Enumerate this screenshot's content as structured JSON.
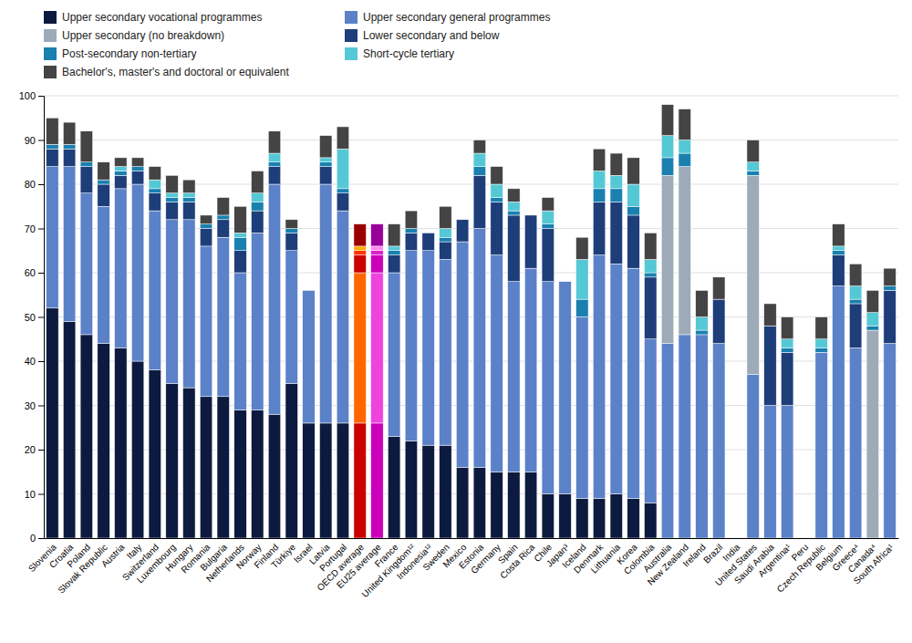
{
  "chart_data": {
    "type": "bar",
    "stacked": true,
    "grid": true,
    "legend": "top-left",
    "categories": [
      "Slovenia",
      "Croatia",
      "Poland",
      "Slovak Republic",
      "Austria",
      "Italy",
      "Switzerland",
      "Luxembourg",
      "Hungary",
      "Romania",
      "Bulgaria",
      "Netherlands",
      "Norway",
      "Finland",
      "Türkiye",
      "Israel",
      "Latvia",
      "Portugal",
      "OECD average",
      "EU25 average",
      "France",
      "United Kingdom¹²",
      "Indonesia¹²",
      "Sweden",
      "Mexico",
      "Estonia",
      "Germany",
      "Spain",
      "Costa Rica",
      "Chile",
      "Japan³",
      "Iceland",
      "Denmark",
      "Lithuania",
      "Korea",
      "Colombia",
      "Australia",
      "New Zealand",
      "Ireland",
      "Brazil",
      "India",
      "United States",
      "Saudi Arabia",
      "Argentina¹",
      "Peru",
      "Czech Republic",
      "Belgium",
      "Greece⁴",
      "Canada⁴",
      "South Africa¹"
    ],
    "ylim": [
      0,
      100
    ],
    "yticks": [
      0,
      10,
      20,
      30,
      40,
      50,
      60,
      70,
      80,
      90,
      100
    ],
    "series": [
      {
        "name": "Upper secondary vocational programmes",
        "color": "#0d1a40",
        "values": [
          52,
          49,
          46,
          44,
          43,
          40,
          38,
          35,
          34,
          32,
          32,
          29,
          29,
          28,
          35,
          26,
          26,
          26,
          26,
          26,
          23,
          22,
          21,
          21,
          16,
          16,
          15,
          15,
          15,
          10,
          10,
          9,
          9,
          10,
          9,
          8,
          0,
          0,
          0,
          0,
          0,
          0,
          0,
          0,
          0,
          0,
          0,
          0,
          0,
          0
        ],
        "colors": [
          "#0d1a40",
          "#0d1a40",
          "#0d1a40",
          "#0d1a40",
          "#0d1a40",
          "#0d1a40",
          "#0d1a40",
          "#0d1a40",
          "#0d1a40",
          "#0d1a40",
          "#0d1a40",
          "#0d1a40",
          "#0d1a40",
          "#0d1a40",
          "#0d1a40",
          "#0d1a40",
          "#0d1a40",
          "#0d1a40",
          "#cc0000",
          "#cc00bb",
          "#0d1a40",
          "#0d1a40",
          "#0d1a40",
          "#0d1a40",
          "#0d1a40",
          "#0d1a40",
          "#0d1a40",
          "#0d1a40",
          "#0d1a40",
          "#0d1a40",
          "#0d1a40",
          "#0d1a40",
          "#0d1a40",
          "#0d1a40",
          "#0d1a40",
          "#0d1a40",
          "#0d1a40",
          "#0d1a40",
          "#0d1a40",
          "#0d1a40",
          "#0d1a40",
          "#0d1a40",
          "#0d1a40",
          "#0d1a40",
          "#0d1a40",
          "#0d1a40",
          "#0d1a40",
          "#0d1a40",
          "#0d1a40",
          "#0d1a40"
        ]
      },
      {
        "name": "Upper secondary general programmes",
        "color": "#5b82c8",
        "values": [
          32,
          35,
          32,
          31,
          36,
          40,
          36,
          37,
          38,
          34,
          36,
          31,
          40,
          52,
          30,
          30,
          54,
          48,
          34,
          34,
          37,
          43,
          44,
          42,
          51,
          54,
          49,
          43,
          46,
          48,
          48,
          41,
          55,
          52,
          52,
          37,
          44,
          46,
          46,
          44,
          0,
          37,
          30,
          30,
          0,
          42,
          57,
          43,
          0,
          44
        ],
        "colors": [
          "#5b82c8",
          "#5b82c8",
          "#5b82c8",
          "#5b82c8",
          "#5b82c8",
          "#5b82c8",
          "#5b82c8",
          "#5b82c8",
          "#5b82c8",
          "#5b82c8",
          "#5b82c8",
          "#5b82c8",
          "#5b82c8",
          "#5b82c8",
          "#5b82c8",
          "#5b82c8",
          "#5b82c8",
          "#5b82c8",
          "#ff6600",
          "#ee44dd",
          "#5b82c8",
          "#5b82c8",
          "#5b82c8",
          "#5b82c8",
          "#5b82c8",
          "#5b82c8",
          "#5b82c8",
          "#5b82c8",
          "#5b82c8",
          "#5b82c8",
          "#5b82c8",
          "#5b82c8",
          "#5b82c8",
          "#5b82c8",
          "#5b82c8",
          "#5b82c8",
          "#5b82c8",
          "#5b82c8",
          "#5b82c8",
          "#5b82c8",
          "#5b82c8",
          "#5b82c8",
          "#5b82c8",
          "#5b82c8",
          "#5b82c8",
          "#5b82c8",
          "#5b82c8",
          "#5b82c8",
          "#5b82c8",
          "#5b82c8"
        ]
      },
      {
        "name": "Upper secondary (no breakdown)",
        "color": "#9daab8",
        "values": [
          0,
          0,
          0,
          0,
          0,
          0,
          0,
          0,
          0,
          0,
          0,
          0,
          0,
          0,
          0,
          0,
          0,
          0,
          0,
          0,
          0,
          0,
          0,
          0,
          0,
          0,
          0,
          0,
          0,
          0,
          0,
          0,
          0,
          0,
          0,
          0,
          38,
          38,
          0,
          0,
          0,
          45,
          0,
          0,
          0,
          0,
          0,
          0,
          47,
          0
        ],
        "colors": [
          "#9daab8",
          "#9daab8",
          "#9daab8",
          "#9daab8",
          "#9daab8",
          "#9daab8",
          "#9daab8",
          "#9daab8",
          "#9daab8",
          "#9daab8",
          "#9daab8",
          "#9daab8",
          "#9daab8",
          "#9daab8",
          "#9daab8",
          "#9daab8",
          "#9daab8",
          "#9daab8",
          "#cc0000",
          "#cc00bb",
          "#9daab8",
          "#9daab8",
          "#9daab8",
          "#9daab8",
          "#9daab8",
          "#9daab8",
          "#9daab8",
          "#9daab8",
          "#9daab8",
          "#9daab8",
          "#9daab8",
          "#9daab8",
          "#9daab8",
          "#9daab8",
          "#9daab8",
          "#9daab8",
          "#9daab8",
          "#9daab8",
          "#9daab8",
          "#9daab8",
          "#9daab8",
          "#9daab8",
          "#9daab8",
          "#9daab8",
          "#9daab8",
          "#9daab8",
          "#9daab8",
          "#9daab8",
          "#9daab8",
          "#9daab8"
        ]
      },
      {
        "name": "Lower secondary and below",
        "color": "#1e3e7a",
        "values": [
          4,
          4,
          6,
          5,
          3,
          3,
          4,
          4,
          4,
          4,
          4,
          5,
          5,
          4,
          4,
          0,
          4,
          4,
          4,
          4,
          4,
          4,
          4,
          4,
          5,
          12,
          12,
          15,
          12,
          12,
          0,
          0,
          12,
          14,
          12,
          14,
          0,
          0,
          0,
          10,
          0,
          0,
          18,
          12,
          0,
          0,
          7,
          10,
          0,
          12
        ],
        "colors": [
          "#1e3e7a",
          "#1e3e7a",
          "#1e3e7a",
          "#1e3e7a",
          "#1e3e7a",
          "#1e3e7a",
          "#1e3e7a",
          "#1e3e7a",
          "#1e3e7a",
          "#1e3e7a",
          "#1e3e7a",
          "#1e3e7a",
          "#1e3e7a",
          "#1e3e7a",
          "#1e3e7a",
          "#1e3e7a",
          "#1e3e7a",
          "#1e3e7a",
          "#cc0000",
          "#cc00bb",
          "#1e3e7a",
          "#1e3e7a",
          "#1e3e7a",
          "#1e3e7a",
          "#1e3e7a",
          "#1e3e7a",
          "#1e3e7a",
          "#1e3e7a",
          "#1e3e7a",
          "#1e3e7a",
          "#1e3e7a",
          "#1e3e7a",
          "#1e3e7a",
          "#1e3e7a",
          "#1e3e7a",
          "#1e3e7a",
          "#1e3e7a",
          "#1e3e7a",
          "#1e3e7a",
          "#1e3e7a",
          "#1e3e7a",
          "#1e3e7a",
          "#1e3e7a",
          "#1e3e7a",
          "#1e3e7a",
          "#1e3e7a",
          "#1e3e7a",
          "#1e3e7a",
          "#1e3e7a",
          "#1e3e7a"
        ]
      },
      {
        "name": "Post-secondary non-tertiary",
        "color": "#1a80b0",
        "values": [
          1,
          1,
          1,
          1,
          1,
          1,
          1,
          1,
          1,
          1,
          1,
          3,
          2,
          1,
          1,
          0,
          1,
          1,
          1,
          1,
          1,
          1,
          0,
          1,
          0,
          2,
          1,
          1,
          0,
          1,
          0,
          4,
          3,
          3,
          2,
          1,
          4,
          3,
          1,
          0,
          0,
          1,
          0,
          1,
          0,
          1,
          1,
          1,
          1,
          1
        ],
        "colors": [
          "#1a80b0",
          "#1a80b0",
          "#1a80b0",
          "#1a80b0",
          "#1a80b0",
          "#1a80b0",
          "#1a80b0",
          "#1a80b0",
          "#1a80b0",
          "#1a80b0",
          "#1a80b0",
          "#1a80b0",
          "#1a80b0",
          "#1a80b0",
          "#1a80b0",
          "#1a80b0",
          "#1a80b0",
          "#1a80b0",
          "#ff3300",
          "#dd22cc",
          "#1a80b0",
          "#1a80b0",
          "#1a80b0",
          "#1a80b0",
          "#1a80b0",
          "#1a80b0",
          "#1a80b0",
          "#1a80b0",
          "#1a80b0",
          "#1a80b0",
          "#1a80b0",
          "#1a80b0",
          "#1a80b0",
          "#1a80b0",
          "#1a80b0",
          "#1a80b0",
          "#1a80b0",
          "#1a80b0",
          "#1a80b0",
          "#1a80b0",
          "#1a80b0",
          "#1a80b0",
          "#1a80b0",
          "#1a80b0",
          "#1a80b0",
          "#1a80b0",
          "#1a80b0",
          "#1a80b0",
          "#1a80b0",
          "#1a80b0"
        ]
      },
      {
        "name": "Short-cycle tertiary",
        "color": "#55c8d5",
        "values": [
          0,
          0,
          0,
          0,
          1,
          0,
          2,
          1,
          1,
          0,
          0,
          1,
          2,
          2,
          0,
          0,
          1,
          9,
          1,
          1,
          1,
          0,
          0,
          2,
          0,
          3,
          3,
          2,
          0,
          3,
          0,
          9,
          4,
          3,
          5,
          3,
          5,
          3,
          3,
          0,
          0,
          2,
          0,
          2,
          0,
          2,
          1,
          3,
          3,
          0
        ],
        "colors": [
          "#55c8d5",
          "#55c8d5",
          "#55c8d5",
          "#55c8d5",
          "#55c8d5",
          "#55c8d5",
          "#55c8d5",
          "#55c8d5",
          "#55c8d5",
          "#55c8d5",
          "#55c8d5",
          "#55c8d5",
          "#55c8d5",
          "#55c8d5",
          "#55c8d5",
          "#55c8d5",
          "#55c8d5",
          "#55c8d5",
          "#ffaa00",
          "#ff88ee",
          "#55c8d5",
          "#55c8d5",
          "#55c8d5",
          "#55c8d5",
          "#55c8d5",
          "#55c8d5",
          "#55c8d5",
          "#55c8d5",
          "#55c8d5",
          "#55c8d5",
          "#55c8d5",
          "#55c8d5",
          "#55c8d5",
          "#55c8d5",
          "#55c8d5",
          "#55c8d5",
          "#55c8d5",
          "#55c8d5",
          "#55c8d5",
          "#55c8d5",
          "#55c8d5",
          "#55c8d5",
          "#55c8d5",
          "#55c8d5",
          "#55c8d5",
          "#55c8d5",
          "#55c8d5",
          "#55c8d5",
          "#55c8d5",
          "#55c8d5"
        ]
      },
      {
        "name": "Bachelor's, master's and doctoral or equivalent",
        "color": "#444444",
        "values": [
          6,
          5,
          7,
          4,
          2,
          2,
          3,
          4,
          3,
          2,
          4,
          6,
          5,
          5,
          2,
          0,
          5,
          5,
          5,
          5,
          5,
          4,
          0,
          5,
          0,
          3,
          4,
          3,
          0,
          3,
          0,
          5,
          5,
          5,
          6,
          6,
          7,
          7,
          6,
          5,
          0,
          5,
          5,
          5,
          0,
          5,
          5,
          5,
          5,
          4
        ],
        "colors": [
          "#444444",
          "#444444",
          "#444444",
          "#444444",
          "#444444",
          "#444444",
          "#444444",
          "#444444",
          "#444444",
          "#444444",
          "#444444",
          "#444444",
          "#444444",
          "#444444",
          "#444444",
          "#444444",
          "#444444",
          "#444444",
          "#990000",
          "#990099",
          "#444444",
          "#444444",
          "#444444",
          "#444444",
          "#444444",
          "#444444",
          "#444444",
          "#444444",
          "#444444",
          "#444444",
          "#444444",
          "#444444",
          "#444444",
          "#444444",
          "#444444",
          "#444444",
          "#444444",
          "#444444",
          "#444444",
          "#444444",
          "#444444",
          "#444444",
          "#444444",
          "#444444",
          "#444444",
          "#444444",
          "#444444",
          "#444444",
          "#444444",
          "#444444"
        ]
      }
    ]
  }
}
